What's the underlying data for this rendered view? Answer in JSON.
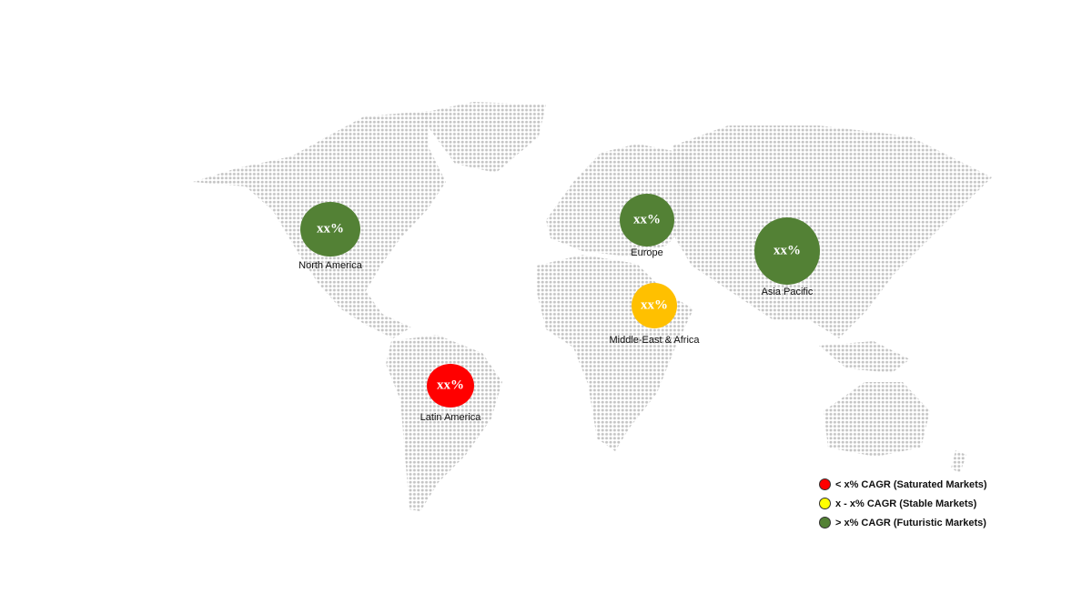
{
  "regions": [
    {
      "name": "North America",
      "value": "xx%",
      "color": "#538135"
    },
    {
      "name": "Europe",
      "value": "xx%",
      "color": "#538135"
    },
    {
      "name": "Asia Pacific",
      "value": "xx%",
      "color": "#538135"
    },
    {
      "name": "Middle-East & Africa",
      "value": "xx%",
      "color": "#ffc000"
    },
    {
      "name": "Latin America",
      "value": "xx%",
      "color": "#ff0000"
    }
  ],
  "legend": [
    {
      "label": "< x% CAGR (Saturated Markets)",
      "color": "#ff0000"
    },
    {
      "label": "x - x% CAGR (Stable Markets)",
      "color": "#ffff00"
    },
    {
      "label": "> x% CAGR (Futuristic Markets)",
      "color": "#538135"
    }
  ],
  "map_dot_color": "#c4c4c4"
}
